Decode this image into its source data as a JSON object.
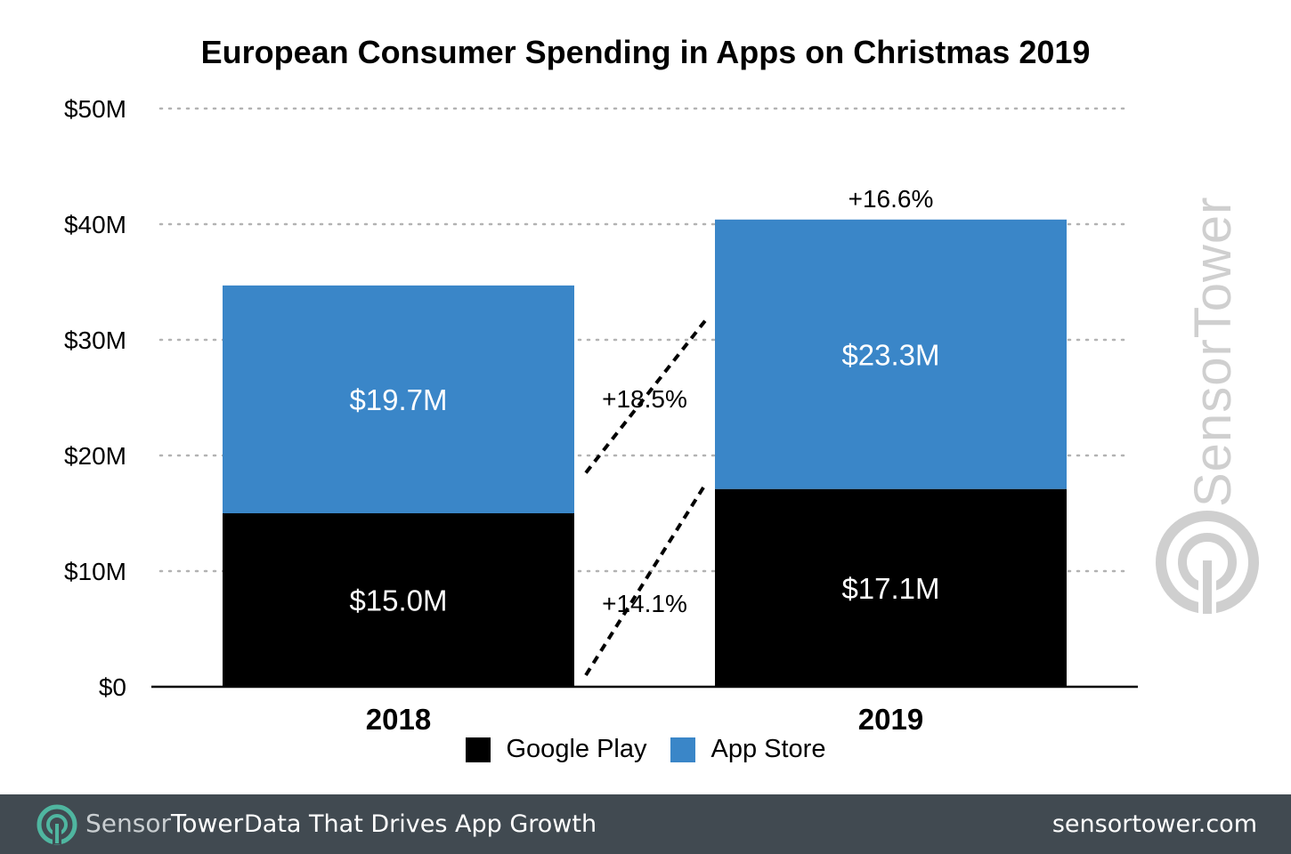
{
  "colors": {
    "google_play": "#000000",
    "app_store": "#3a86c8",
    "footer_bg": "#414a51",
    "watermark": "#cfcfcf"
  },
  "chart_data": {
    "type": "bar",
    "stacked": true,
    "title": "European Consumer Spending in Apps on Christmas 2019",
    "categories": [
      "2018",
      "2019"
    ],
    "series": [
      {
        "name": "Google Play",
        "values": [
          15.0,
          17.1
        ],
        "labels": [
          "$15.0M",
          "$17.1M"
        ]
      },
      {
        "name": "App Store",
        "values": [
          19.7,
          23.3
        ],
        "labels": [
          "$19.7M",
          "$23.3M"
        ]
      }
    ],
    "ylim": [
      0,
      50
    ],
    "yticks": [
      0,
      10,
      20,
      30,
      40,
      50
    ],
    "ytick_labels": [
      "$0",
      "$10M",
      "$20M",
      "$30M",
      "$40M",
      "$50M"
    ],
    "grid": true,
    "legend": "bottom-center",
    "annotations": {
      "google_play_growth": "+14.1%",
      "app_store_growth": "+18.5%",
      "total_growth": "+16.6%"
    }
  },
  "watermark": {
    "brand": "SensorTower"
  },
  "footer": {
    "brand_part1": "Sensor",
    "brand_part2": "Tower",
    "tagline": "Data That Drives App Growth",
    "url": "sensortower.com"
  }
}
